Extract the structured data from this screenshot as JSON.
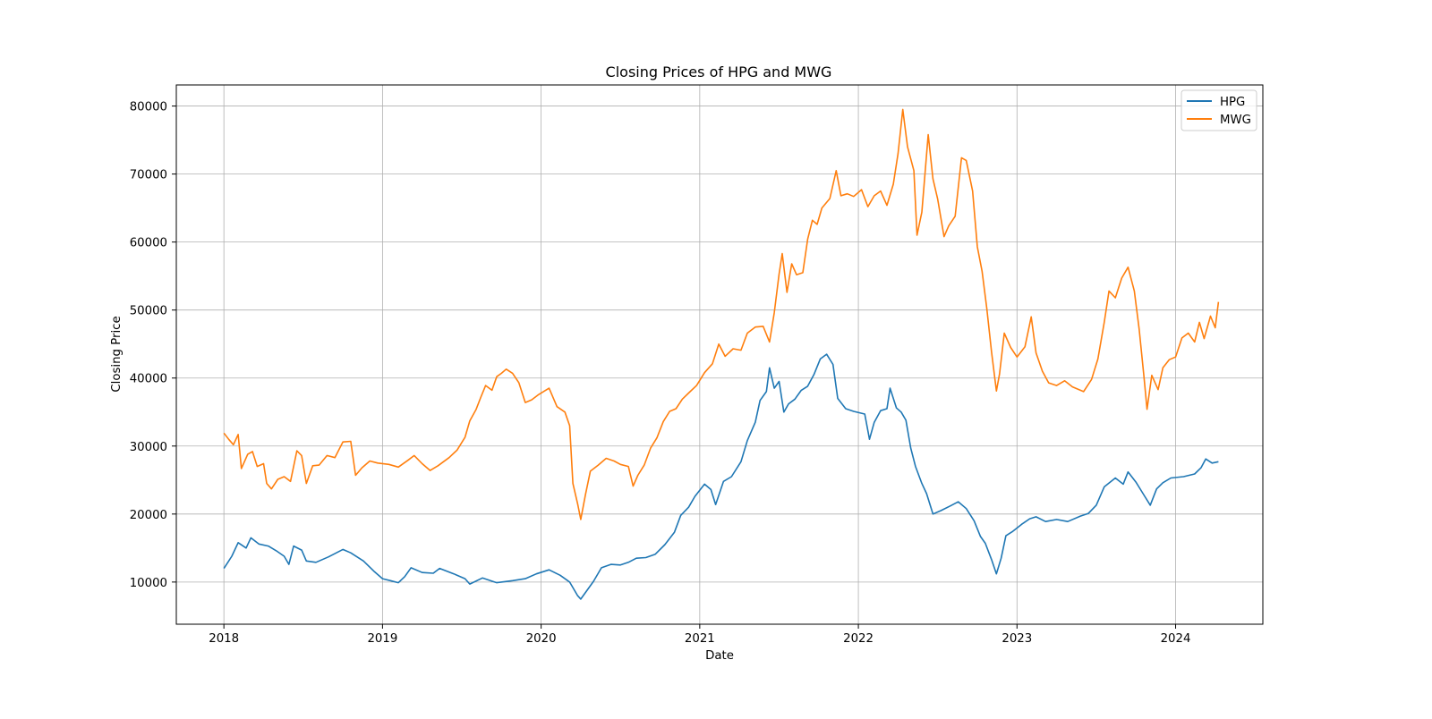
{
  "chart_data": {
    "type": "line",
    "title": "Closing Prices of HPG and MWG",
    "xlabel": "Date",
    "ylabel": "Closing Price",
    "xlim": [
      2017.7,
      2024.55
    ],
    "ylim": [
      3800,
      83100
    ],
    "x_ticks": [
      2018,
      2019,
      2020,
      2021,
      2022,
      2023,
      2024
    ],
    "x_tick_labels": [
      "2018",
      "2019",
      "2020",
      "2021",
      "2022",
      "2023",
      "2024"
    ],
    "y_ticks": [
      10000,
      20000,
      30000,
      40000,
      50000,
      60000,
      70000,
      80000
    ],
    "y_tick_labels": [
      "10000",
      "20000",
      "30000",
      "40000",
      "50000",
      "60000",
      "70000",
      "80000"
    ],
    "grid": true,
    "legend_position": "top-right",
    "series": [
      {
        "name": "HPG",
        "color": "#1f77b4",
        "points": [
          [
            2018.0,
            12000
          ],
          [
            2018.05,
            13800
          ],
          [
            2018.09,
            15800
          ],
          [
            2018.14,
            15000
          ],
          [
            2018.17,
            16500
          ],
          [
            2018.22,
            15600
          ],
          [
            2018.28,
            15300
          ],
          [
            2018.33,
            14600
          ],
          [
            2018.38,
            13800
          ],
          [
            2018.41,
            12600
          ],
          [
            2018.44,
            15300
          ],
          [
            2018.49,
            14700
          ],
          [
            2018.52,
            13100
          ],
          [
            2018.58,
            12900
          ],
          [
            2018.66,
            13700
          ],
          [
            2018.75,
            14800
          ],
          [
            2018.8,
            14300
          ],
          [
            2018.88,
            13100
          ],
          [
            2018.95,
            11500
          ],
          [
            2019.0,
            10500
          ],
          [
            2019.05,
            10200
          ],
          [
            2019.1,
            9900
          ],
          [
            2019.14,
            10800
          ],
          [
            2019.18,
            12100
          ],
          [
            2019.25,
            11400
          ],
          [
            2019.32,
            11300
          ],
          [
            2019.36,
            12000
          ],
          [
            2019.45,
            11200
          ],
          [
            2019.52,
            10500
          ],
          [
            2019.55,
            9700
          ],
          [
            2019.63,
            10600
          ],
          [
            2019.72,
            9900
          ],
          [
            2019.82,
            10200
          ],
          [
            2019.9,
            10500
          ],
          [
            2019.97,
            11200
          ],
          [
            2020.05,
            11800
          ],
          [
            2020.12,
            11000
          ],
          [
            2020.18,
            10000
          ],
          [
            2020.23,
            8000
          ],
          [
            2020.25,
            7500
          ],
          [
            2020.29,
            8800
          ],
          [
            2020.33,
            10100
          ],
          [
            2020.38,
            12100
          ],
          [
            2020.44,
            12600
          ],
          [
            2020.5,
            12500
          ],
          [
            2020.55,
            12900
          ],
          [
            2020.6,
            13500
          ],
          [
            2020.66,
            13600
          ],
          [
            2020.72,
            14100
          ],
          [
            2020.78,
            15500
          ],
          [
            2020.84,
            17300
          ],
          [
            2020.88,
            19800
          ],
          [
            2020.93,
            21000
          ],
          [
            2020.97,
            22600
          ],
          [
            2021.03,
            24400
          ],
          [
            2021.07,
            23600
          ],
          [
            2021.1,
            21400
          ],
          [
            2021.15,
            24800
          ],
          [
            2021.2,
            25500
          ],
          [
            2021.26,
            27700
          ],
          [
            2021.3,
            30800
          ],
          [
            2021.35,
            33500
          ],
          [
            2021.38,
            36700
          ],
          [
            2021.42,
            38000
          ],
          [
            2021.44,
            41500
          ],
          [
            2021.47,
            38500
          ],
          [
            2021.5,
            39500
          ],
          [
            2021.53,
            35000
          ],
          [
            2021.56,
            36200
          ],
          [
            2021.6,
            36900
          ],
          [
            2021.64,
            38200
          ],
          [
            2021.68,
            38800
          ],
          [
            2021.72,
            40500
          ],
          [
            2021.76,
            42800
          ],
          [
            2021.8,
            43500
          ],
          [
            2021.84,
            42000
          ],
          [
            2021.87,
            37000
          ],
          [
            2021.92,
            35500
          ],
          [
            2021.97,
            35100
          ],
          [
            2022.04,
            34700
          ],
          [
            2022.07,
            31000
          ],
          [
            2022.1,
            33500
          ],
          [
            2022.14,
            35200
          ],
          [
            2022.18,
            35500
          ],
          [
            2022.2,
            38500
          ],
          [
            2022.24,
            35600
          ],
          [
            2022.27,
            35000
          ],
          [
            2022.3,
            33800
          ],
          [
            2022.33,
            29700
          ],
          [
            2022.36,
            27000
          ],
          [
            2022.4,
            24500
          ],
          [
            2022.43,
            23000
          ],
          [
            2022.47,
            20000
          ],
          [
            2022.52,
            20500
          ],
          [
            2022.58,
            21200
          ],
          [
            2022.63,
            21800
          ],
          [
            2022.68,
            20800
          ],
          [
            2022.73,
            19000
          ],
          [
            2022.77,
            16700
          ],
          [
            2022.8,
            15700
          ],
          [
            2022.84,
            13300
          ],
          [
            2022.87,
            11200
          ],
          [
            2022.9,
            13500
          ],
          [
            2022.93,
            16800
          ],
          [
            2022.97,
            17400
          ],
          [
            2023.03,
            18500
          ],
          [
            2023.08,
            19300
          ],
          [
            2023.12,
            19600
          ],
          [
            2023.18,
            18900
          ],
          [
            2023.25,
            19200
          ],
          [
            2023.32,
            18900
          ],
          [
            2023.4,
            19700
          ],
          [
            2023.45,
            20100
          ],
          [
            2023.5,
            21300
          ],
          [
            2023.55,
            24000
          ],
          [
            2023.62,
            25300
          ],
          [
            2023.67,
            24400
          ],
          [
            2023.7,
            26200
          ],
          [
            2023.75,
            24700
          ],
          [
            2023.8,
            22800
          ],
          [
            2023.84,
            21300
          ],
          [
            2023.88,
            23700
          ],
          [
            2023.92,
            24600
          ],
          [
            2023.97,
            25300
          ],
          [
            2024.05,
            25500
          ],
          [
            2024.12,
            25900
          ],
          [
            2024.16,
            26800
          ],
          [
            2024.19,
            28100
          ],
          [
            2024.23,
            27500
          ],
          [
            2024.27,
            27700
          ]
        ]
      },
      {
        "name": "MWG",
        "color": "#ff7f0e",
        "points": [
          [
            2018.0,
            31900
          ],
          [
            2018.03,
            31000
          ],
          [
            2018.06,
            30200
          ],
          [
            2018.09,
            31700
          ],
          [
            2018.11,
            26700
          ],
          [
            2018.15,
            28800
          ],
          [
            2018.18,
            29200
          ],
          [
            2018.21,
            27000
          ],
          [
            2018.25,
            27400
          ],
          [
            2018.27,
            24500
          ],
          [
            2018.3,
            23700
          ],
          [
            2018.34,
            25100
          ],
          [
            2018.38,
            25500
          ],
          [
            2018.42,
            24800
          ],
          [
            2018.46,
            29300
          ],
          [
            2018.49,
            28600
          ],
          [
            2018.52,
            24500
          ],
          [
            2018.56,
            27100
          ],
          [
            2018.6,
            27200
          ],
          [
            2018.65,
            28600
          ],
          [
            2018.7,
            28300
          ],
          [
            2018.75,
            30600
          ],
          [
            2018.8,
            30700
          ],
          [
            2018.83,
            25700
          ],
          [
            2018.87,
            26800
          ],
          [
            2018.92,
            27800
          ],
          [
            2018.97,
            27500
          ],
          [
            2019.04,
            27300
          ],
          [
            2019.1,
            26900
          ],
          [
            2019.16,
            27900
          ],
          [
            2019.2,
            28600
          ],
          [
            2019.25,
            27400
          ],
          [
            2019.3,
            26400
          ],
          [
            2019.35,
            27100
          ],
          [
            2019.42,
            28300
          ],
          [
            2019.47,
            29400
          ],
          [
            2019.52,
            31300
          ],
          [
            2019.55,
            33700
          ],
          [
            2019.59,
            35400
          ],
          [
            2019.62,
            37200
          ],
          [
            2019.65,
            38900
          ],
          [
            2019.69,
            38200
          ],
          [
            2019.72,
            40200
          ],
          [
            2019.75,
            40700
          ],
          [
            2019.78,
            41300
          ],
          [
            2019.82,
            40700
          ],
          [
            2019.86,
            39300
          ],
          [
            2019.9,
            36400
          ],
          [
            2019.94,
            36800
          ],
          [
            2019.98,
            37500
          ],
          [
            2020.05,
            38500
          ],
          [
            2020.1,
            35800
          ],
          [
            2020.15,
            35000
          ],
          [
            2020.18,
            33000
          ],
          [
            2020.2,
            24500
          ],
          [
            2020.23,
            21500
          ],
          [
            2020.25,
            19200
          ],
          [
            2020.28,
            22900
          ],
          [
            2020.31,
            26300
          ],
          [
            2020.36,
            27200
          ],
          [
            2020.41,
            28200
          ],
          [
            2020.46,
            27800
          ],
          [
            2020.5,
            27300
          ],
          [
            2020.55,
            27000
          ],
          [
            2020.58,
            24100
          ],
          [
            2020.61,
            25700
          ],
          [
            2020.65,
            27200
          ],
          [
            2020.69,
            29700
          ],
          [
            2020.73,
            31200
          ],
          [
            2020.77,
            33600
          ],
          [
            2020.81,
            35100
          ],
          [
            2020.85,
            35500
          ],
          [
            2020.89,
            36900
          ],
          [
            2020.93,
            37800
          ],
          [
            2020.98,
            38900
          ],
          [
            2021.03,
            40800
          ],
          [
            2021.08,
            42100
          ],
          [
            2021.12,
            45000
          ],
          [
            2021.16,
            43200
          ],
          [
            2021.21,
            44300
          ],
          [
            2021.26,
            44100
          ],
          [
            2021.3,
            46600
          ],
          [
            2021.35,
            47500
          ],
          [
            2021.4,
            47600
          ],
          [
            2021.44,
            45300
          ],
          [
            2021.47,
            49600
          ],
          [
            2021.5,
            55300
          ],
          [
            2021.52,
            58300
          ],
          [
            2021.55,
            52600
          ],
          [
            2021.58,
            56800
          ],
          [
            2021.61,
            55200
          ],
          [
            2021.65,
            55500
          ],
          [
            2021.68,
            60400
          ],
          [
            2021.71,
            63200
          ],
          [
            2021.74,
            62600
          ],
          [
            2021.77,
            65000
          ],
          [
            2021.82,
            66400
          ],
          [
            2021.86,
            70500
          ],
          [
            2021.89,
            66800
          ],
          [
            2021.93,
            67100
          ],
          [
            2021.97,
            66700
          ],
          [
            2022.02,
            67700
          ],
          [
            2022.06,
            65200
          ],
          [
            2022.1,
            66800
          ],
          [
            2022.14,
            67500
          ],
          [
            2022.18,
            65400
          ],
          [
            2022.22,
            68500
          ],
          [
            2022.25,
            73000
          ],
          [
            2022.28,
            79500
          ],
          [
            2022.31,
            74000
          ],
          [
            2022.35,
            70500
          ],
          [
            2022.37,
            61000
          ],
          [
            2022.4,
            64400
          ],
          [
            2022.44,
            75800
          ],
          [
            2022.47,
            69300
          ],
          [
            2022.5,
            66300
          ],
          [
            2022.54,
            60800
          ],
          [
            2022.57,
            62400
          ],
          [
            2022.61,
            63800
          ],
          [
            2022.65,
            72400
          ],
          [
            2022.68,
            72000
          ],
          [
            2022.72,
            67500
          ],
          [
            2022.75,
            59300
          ],
          [
            2022.78,
            55700
          ],
          [
            2022.81,
            50200
          ],
          [
            2022.84,
            43800
          ],
          [
            2022.87,
            38100
          ],
          [
            2022.89,
            40600
          ],
          [
            2022.92,
            46600
          ],
          [
            2022.96,
            44500
          ],
          [
            2023.0,
            43100
          ],
          [
            2023.05,
            44600
          ],
          [
            2023.09,
            49000
          ],
          [
            2023.12,
            43700
          ],
          [
            2023.16,
            41000
          ],
          [
            2023.2,
            39300
          ],
          [
            2023.25,
            38900
          ],
          [
            2023.3,
            39600
          ],
          [
            2023.35,
            38700
          ],
          [
            2023.42,
            38000
          ],
          [
            2023.47,
            39800
          ],
          [
            2023.51,
            42800
          ],
          [
            2023.55,
            48200
          ],
          [
            2023.58,
            52800
          ],
          [
            2023.62,
            51800
          ],
          [
            2023.66,
            54700
          ],
          [
            2023.7,
            56300
          ],
          [
            2023.74,
            52800
          ],
          [
            2023.77,
            47200
          ],
          [
            2023.8,
            40300
          ],
          [
            2023.82,
            35400
          ],
          [
            2023.85,
            40400
          ],
          [
            2023.89,
            38300
          ],
          [
            2023.92,
            41500
          ],
          [
            2023.96,
            42700
          ],
          [
            2024.0,
            43100
          ],
          [
            2024.04,
            45900
          ],
          [
            2024.08,
            46600
          ],
          [
            2024.12,
            45300
          ],
          [
            2024.15,
            48200
          ],
          [
            2024.18,
            45800
          ],
          [
            2024.22,
            49100
          ],
          [
            2024.25,
            47400
          ],
          [
            2024.27,
            51200
          ]
        ]
      }
    ]
  }
}
